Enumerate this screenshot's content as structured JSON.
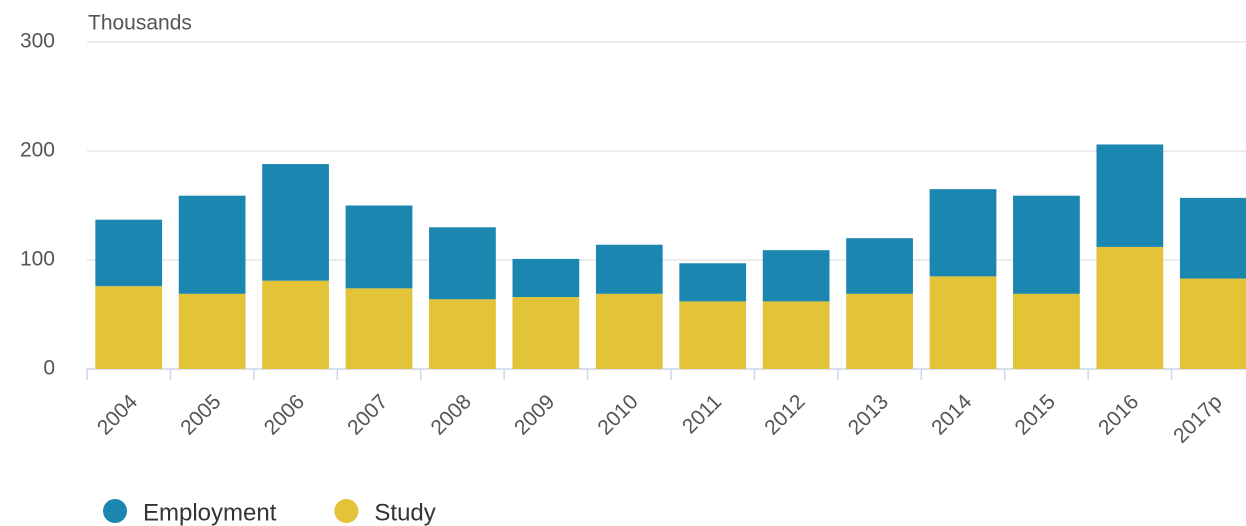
{
  "chart_data": {
    "type": "stacked_bar",
    "y_axis_label": "Thousands",
    "categories": [
      "2004",
      "2005",
      "2006",
      "2007",
      "2008",
      "2009",
      "2010",
      "2011",
      "2012",
      "2013",
      "2014",
      "2015",
      "2016",
      "2017p"
    ],
    "series": [
      {
        "name": "Employment",
        "color": "#1b87b0",
        "values": [
          61,
          90,
          107,
          76,
          66,
          35,
          45,
          35,
          47,
          51,
          80,
          90,
          94,
          74
        ]
      },
      {
        "name": "Study",
        "color": "#e3c337",
        "values": [
          76,
          69,
          81,
          74,
          64,
          66,
          69,
          62,
          62,
          69,
          85,
          69,
          112,
          83
        ]
      }
    ],
    "ylim": [
      0,
      300
    ],
    "yticks": [
      0,
      100,
      200,
      300
    ],
    "grid": true,
    "legend": "bottom-left"
  }
}
